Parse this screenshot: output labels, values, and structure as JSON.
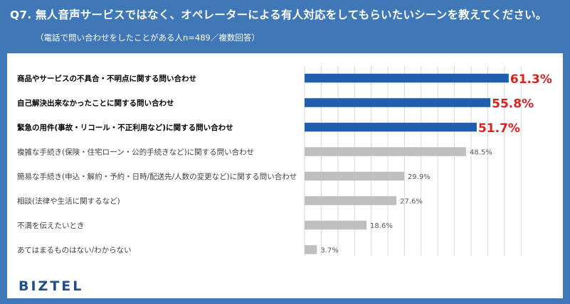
{
  "header": {
    "title": "Q7. 無人音声サービスではなく、オペレーターによる有人対応をしてもらいたいシーンを教えてください。",
    "subtitle": "（電話で問い合わせをしたことがある人n=489／複数回答）"
  },
  "brand": {
    "logo_text": "BIZTEL"
  },
  "colors": {
    "header_bg": "#3f77b7",
    "highlight_bar": "#1f5fad",
    "normal_bar": "#bfbfbf",
    "highlight_value": "#e02020",
    "normal_value": "#595959",
    "gridline": "#d9d9d9"
  },
  "chart_data": {
    "type": "bar",
    "orientation": "horizontal",
    "unit": "%",
    "xlim": [
      0,
      65
    ],
    "grid": true,
    "categories": [
      "商品やサービスの不具合・不明点に関する問い合わせ",
      "自己解決出来なかったことに関する問い合わせ",
      "緊急の用件(事故・リコール・不正利用など)に関する問い合わせ",
      "複雑な手続き(保険・住宅ローン・公的手続きなど)に関する問い合わせ",
      "簡易な手続き(申込・解約・予約・日時/配送先/人数の変更など)に関する問い合わせ",
      "相談(法律や生活に関するなど)",
      "不満を伝えたいとき",
      "あてはまるものはない/わからない"
    ],
    "values": [
      61.3,
      55.8,
      51.7,
      48.5,
      29.9,
      27.6,
      18.6,
      3.7
    ],
    "value_labels": [
      "61.3%",
      "55.8%",
      "51.7%",
      "48.5%",
      "29.9%",
      "27.6%",
      "18.6%",
      "3.7%"
    ],
    "highlighted": [
      true,
      true,
      true,
      false,
      false,
      false,
      false,
      false
    ]
  }
}
